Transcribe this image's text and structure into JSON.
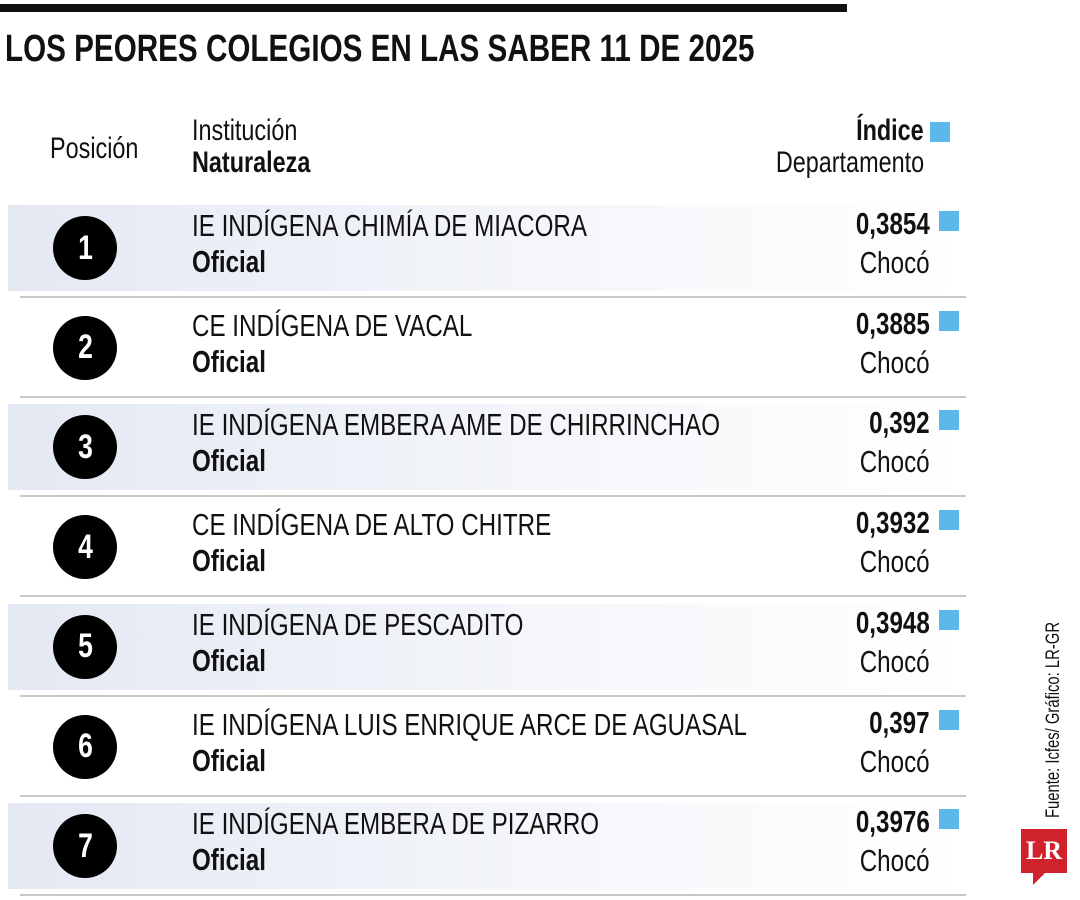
{
  "title": "LOS PEORES COLEGIOS EN LAS SABER 11 DE 2025",
  "headers": {
    "position": "Posición",
    "institution": "Institución",
    "nature": "Naturaleza",
    "index": "Índice",
    "department": "Departamento"
  },
  "accent_color": "#5cb8e8",
  "chart_data": {
    "type": "table",
    "title": "LOS PEORES COLEGIOS EN LAS SABER 11 DE 2025",
    "columns": [
      "Posición",
      "Institución",
      "Naturaleza",
      "Índice",
      "Departamento"
    ],
    "rows": [
      {
        "position": "1",
        "institution": "IE INDÍGENA CHIMÍA DE MIACORA",
        "nature": "Oficial",
        "index": "0,3854",
        "department": "Chocó"
      },
      {
        "position": "2",
        "institution": "CE INDÍGENA DE VACAL",
        "nature": "Oficial",
        "index": "0,3885",
        "department": "Chocó"
      },
      {
        "position": "3",
        "institution": "IE INDÍGENA EMBERA AME DE CHIRRINCHAO",
        "nature": "Oficial",
        "index": "0,392",
        "department": "Chocó"
      },
      {
        "position": "4",
        "institution": "CE INDÍGENA DE ALTO CHITRE",
        "nature": "Oficial",
        "index": "0,3932",
        "department": "Chocó"
      },
      {
        "position": "5",
        "institution": "IE INDÍGENA DE PESCADITO",
        "nature": "Oficial",
        "index": "0,3948",
        "department": "Chocó"
      },
      {
        "position": "6",
        "institution": "IE INDÍGENA LUIS ENRIQUE ARCE DE AGUASAL",
        "nature": "Oficial",
        "index": "0,397",
        "department": "Chocó"
      },
      {
        "position": "7",
        "institution": "IE INDÍGENA EMBERA DE PIZARRO",
        "nature": "Oficial",
        "index": "0,3976",
        "department": "Chocó"
      }
    ]
  },
  "source": "Fuente: Icfes/ Gráfico: LR-GR",
  "logo": "LR"
}
